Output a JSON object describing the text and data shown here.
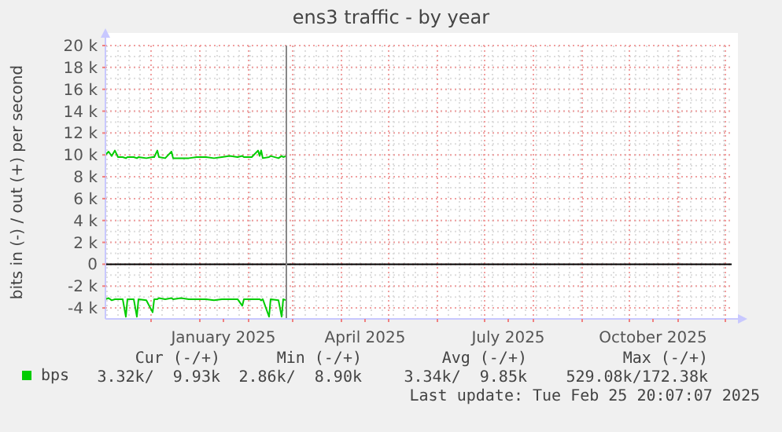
{
  "chart_data": {
    "type": "line",
    "title": "ens3 traffic - by year",
    "ylabel": "bits in (-) / out (+) per second",
    "x": [
      "2024-11-02",
      "2024-11-04",
      "2024-11-06",
      "2024-11-08",
      "2024-11-10",
      "2024-11-13",
      "2024-11-15",
      "2024-11-16",
      "2024-11-20",
      "2024-11-22",
      "2024-11-23",
      "2024-11-28",
      "2024-12-02",
      "2024-12-03",
      "2024-12-05",
      "2024-12-06",
      "2024-12-10",
      "2024-12-14",
      "2024-12-15",
      "2024-12-20",
      "2024-12-25",
      "2024-12-30",
      "2025-01-05",
      "2025-01-10",
      "2025-01-15",
      "2025-01-20",
      "2025-01-25",
      "2025-01-28",
      "2025-01-29",
      "2025-02-03",
      "2025-02-07",
      "2025-02-08",
      "2025-02-09",
      "2025-02-10",
      "2025-02-14",
      "2025-02-15",
      "2025-02-20",
      "2025-02-22",
      "2025-02-23",
      "2025-02-25"
    ],
    "series": [
      {
        "name": "bps",
        "color": "#00cc00",
        "values": [
          10000,
          10300,
          9900,
          10400,
          9800,
          9800,
          9700,
          9800,
          9800,
          9700,
          9800,
          9700,
          9800,
          9800,
          10400,
          9800,
          9700,
          10300,
          9700,
          9700,
          9700,
          9800,
          9800,
          9700,
          9800,
          9900,
          9800,
          9900,
          9800,
          9800,
          10400,
          9900,
          10400,
          9700,
          9800,
          9900,
          9700,
          9900,
          9800,
          9900
        ]
      },
      {
        "color": "#00cc00",
        "values": [
          -3200,
          -3100,
          -3300,
          -3200,
          -3200,
          -3200,
          -4800,
          -3200,
          -3200,
          -4800,
          -3200,
          -3300,
          -4400,
          -3200,
          -3200,
          -3100,
          -3200,
          -3100,
          -3200,
          -3100,
          -3200,
          -3200,
          -3200,
          -3300,
          -3200,
          -3200,
          -3200,
          -3800,
          -3200,
          -3200,
          -3200,
          -3200,
          -3300,
          -3200,
          -4800,
          -3200,
          -3300,
          -4800,
          -3200,
          -3300
        ]
      }
    ],
    "xlim": [
      "2024-11-02",
      "2025-12-05"
    ],
    "xticks": [
      {
        "value": "2024-12-01",
        "label": null
      },
      {
        "value": "2025-01-01",
        "label": null
      },
      {
        "value": "2025-01-16",
        "label": "January 2025"
      },
      {
        "value": "2025-02-01",
        "label": null
      },
      {
        "value": "2025-03-01",
        "label": null
      },
      {
        "value": "2025-04-01",
        "label": null
      },
      {
        "value": "2025-04-16",
        "label": "April 2025"
      },
      {
        "value": "2025-05-01",
        "label": null
      },
      {
        "value": "2025-06-01",
        "label": null
      },
      {
        "value": "2025-07-01",
        "label": null
      },
      {
        "value": "2025-07-16",
        "label": "July 2025"
      },
      {
        "value": "2025-08-01",
        "label": null
      },
      {
        "value": "2025-09-01",
        "label": null
      },
      {
        "value": "2025-10-01",
        "label": null
      },
      {
        "value": "2025-10-16",
        "label": "October 2025"
      },
      {
        "value": "2025-11-01",
        "label": null
      },
      {
        "value": "2025-12-01",
        "label": null
      }
    ],
    "ylim": [
      -5000,
      20000
    ],
    "yticks": [
      {
        "value": -4000,
        "label": "-4 k"
      },
      {
        "value": -2000,
        "label": "-2 k"
      },
      0,
      {
        "value": 2000,
        "label": "2 k"
      },
      {
        "value": 4000,
        "label": "4 k"
      },
      {
        "value": 6000,
        "label": "6 k"
      },
      {
        "value": 8000,
        "label": "8 k"
      },
      {
        "value": 10000,
        "label": "10 k"
      },
      {
        "value": 12000,
        "label": "12 k"
      },
      {
        "value": 14000,
        "label": "14 k"
      },
      {
        "value": 16000,
        "label": "16 k"
      },
      {
        "value": 18000,
        "label": "18 k"
      },
      {
        "value": 20000,
        "label": "20 k"
      }
    ],
    "ref_lines": [
      {
        "axis": "y",
        "value": 0,
        "color": "#000000"
      },
      {
        "axis": "x",
        "value": "2025-02-25",
        "color": "#888888"
      }
    ],
    "grid": true,
    "legend": "bottom left",
    "line_style": "solid",
    "marker": "none",
    "annotations": [
      "Cur (-/+)",
      "Min (-/+)",
      "Avg (-/+)",
      "Max (-/+)",
      "3.32k/  9.93k",
      "2.86k/  8.90k",
      "3.34k/  9.85k",
      "529.08k/172.38k",
      "Last update: Tue Feb 25 20:07:07 2025"
    ]
  }
}
